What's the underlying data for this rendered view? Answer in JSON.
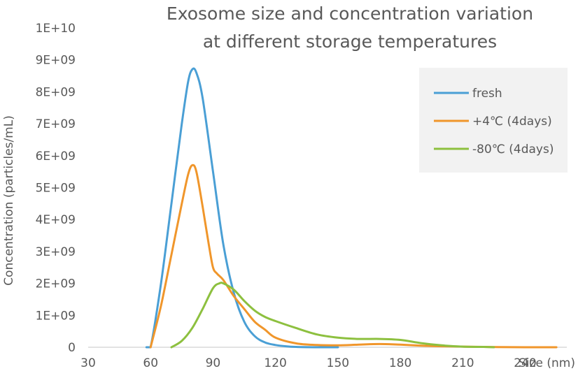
{
  "chart_data": {
    "type": "line",
    "title_lines": [
      "Exosome size and concentration variation",
      "at different storage temperatures"
    ],
    "xlabel": "Size (nm)",
    "ylabel": "Concentration (particles/mL)",
    "xlim": [
      30,
      260
    ],
    "ylim": [
      0,
      10000000000
    ],
    "x_ticks": [
      30,
      60,
      90,
      120,
      150,
      180,
      210,
      240
    ],
    "x_tick_labels": [
      "30",
      "60",
      "90",
      "120",
      "150",
      "180",
      "210",
      "240"
    ],
    "y_ticks": [
      0,
      1000000000,
      2000000000,
      3000000000,
      4000000000,
      5000000000,
      6000000000,
      7000000000,
      8000000000,
      9000000000,
      10000000000
    ],
    "y_tick_labels": [
      "0",
      "1E+09",
      "2E+09",
      "3E+09",
      "4E+09",
      "5E+09",
      "6E+09",
      "7E+09",
      "8E+09",
      "9E+09",
      "1E+10"
    ],
    "grid": false,
    "legend_position": "top-right",
    "series": [
      {
        "name": "fresh",
        "color": "#4A9FD5",
        "x": [
          58,
          60,
          65,
          70,
          75,
          78,
          80,
          82,
          85,
          90,
          95,
          100,
          105,
          110,
          115,
          120,
          125,
          130,
          140,
          150
        ],
        "y": [
          0,
          0,
          2000000000,
          4500000000,
          7000000000,
          8300000000,
          8700000000,
          8600000000,
          7800000000,
          5500000000,
          3200000000,
          1700000000,
          800000000,
          350000000,
          150000000,
          70000000,
          30000000,
          10000000,
          0,
          0
        ]
      },
      {
        "name": "+4℃ (4days)",
        "color": "#F0962B",
        "x": [
          60,
          65,
          70,
          75,
          78,
          80,
          82,
          85,
          88,
          90,
          92,
          95,
          100,
          105,
          110,
          115,
          120,
          130,
          140,
          150,
          160,
          170,
          180,
          190,
          200,
          220,
          240,
          255
        ],
        "y": [
          0,
          1300000000,
          2900000000,
          4500000000,
          5400000000,
          5700000000,
          5500000000,
          4400000000,
          3200000000,
          2500000000,
          2300000000,
          2100000000,
          1600000000,
          1200000000,
          800000000,
          550000000,
          300000000,
          120000000,
          70000000,
          60000000,
          80000000,
          100000000,
          80000000,
          50000000,
          30000000,
          10000000,
          0,
          0
        ]
      },
      {
        "name": "-80℃ (4days)",
        "color": "#8DC03F",
        "x": [
          70,
          75,
          80,
          85,
          90,
          93,
          95,
          100,
          105,
          110,
          115,
          120,
          130,
          140,
          150,
          160,
          170,
          180,
          190,
          200,
          210,
          220,
          225
        ],
        "y": [
          0,
          200000000,
          600000000,
          1200000000,
          1850000000,
          2000000000,
          2000000000,
          1800000000,
          1450000000,
          1150000000,
          950000000,
          820000000,
          600000000,
          400000000,
          300000000,
          260000000,
          260000000,
          230000000,
          130000000,
          60000000,
          20000000,
          10000000,
          0
        ]
      }
    ]
  }
}
